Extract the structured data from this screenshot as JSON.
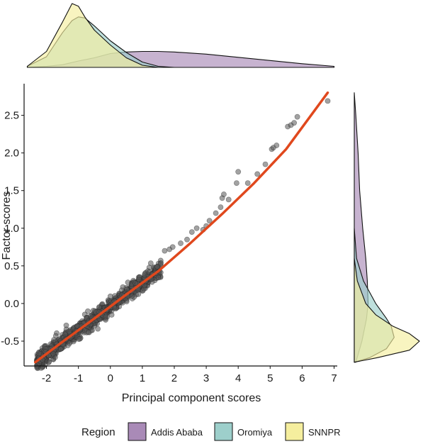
{
  "chart_data": {
    "type": "scatter",
    "xlabel": "Principal component scores",
    "ylabel": "Factor scores",
    "xlim": [
      -2.7,
      7.1
    ],
    "ylim": [
      -0.83,
      2.92
    ],
    "x_ticks": [
      "-2",
      "-1",
      "0",
      "1",
      "2",
      "3",
      "4",
      "5",
      "6",
      "7"
    ],
    "y_ticks": [
      "-0.5",
      "0.0",
      "0.5",
      "1.0",
      "1.5",
      "2.0",
      "2.5"
    ],
    "grid": false,
    "trend_line": {
      "color": "#e0481d",
      "points": [
        [
          -2.35,
          -0.78
        ],
        [
          -1.5,
          -0.51
        ],
        [
          -0.5,
          -0.2
        ],
        [
          0.5,
          0.12
        ],
        [
          1.5,
          0.43
        ],
        [
          2.5,
          0.8
        ],
        [
          3.5,
          1.19
        ],
        [
          4.5,
          1.6
        ],
        [
          5.5,
          2.05
        ],
        [
          6.8,
          2.8
        ]
      ]
    },
    "scatter": {
      "color": "#555555",
      "outliers": [
        [
          1.7,
          0.7
        ],
        [
          1.85,
          0.72
        ],
        [
          1.95,
          0.75
        ],
        [
          2.2,
          0.8
        ],
        [
          2.4,
          0.85
        ],
        [
          2.55,
          0.95
        ],
        [
          2.7,
          1.0
        ],
        [
          2.9,
          0.98
        ],
        [
          3.0,
          1.03
        ],
        [
          3.1,
          1.1
        ],
        [
          3.3,
          1.2
        ],
        [
          3.45,
          1.28
        ],
        [
          3.5,
          1.4
        ],
        [
          3.55,
          1.45
        ],
        [
          3.7,
          1.38
        ],
        [
          3.95,
          1.6
        ],
        [
          4.0,
          1.75
        ],
        [
          4.3,
          1.6
        ],
        [
          4.6,
          1.72
        ],
        [
          4.85,
          1.85
        ],
        [
          5.05,
          2.05
        ],
        [
          5.1,
          2.07
        ],
        [
          5.2,
          2.1
        ],
        [
          5.55,
          2.35
        ],
        [
          5.65,
          2.37
        ],
        [
          5.75,
          2.4
        ],
        [
          5.85,
          2.48
        ],
        [
          6.8,
          2.69
        ]
      ]
    },
    "marginal_top": {
      "series": [
        {
          "name": "Addis Ababa",
          "color": "#a98ab7",
          "x": [
            -2.6,
            -2.0,
            -1.5,
            -1.0,
            -0.5,
            0.0,
            0.5,
            1.0,
            1.5,
            2.0,
            3.0,
            4.0,
            5.0,
            6.0,
            7.0
          ],
          "y": [
            0.0,
            0.02,
            0.05,
            0.12,
            0.18,
            0.26,
            0.29,
            0.3,
            0.3,
            0.29,
            0.25,
            0.19,
            0.13,
            0.07,
            0.02
          ]
        },
        {
          "name": "Oromiya",
          "color": "#9dcfcb",
          "x": [
            -2.6,
            -2.0,
            -1.5,
            -1.2,
            -1.0,
            -0.8,
            -0.5,
            0.0,
            0.5,
            1.0,
            1.5,
            2.0
          ],
          "y": [
            0.02,
            0.2,
            0.65,
            0.88,
            0.95,
            0.93,
            0.78,
            0.5,
            0.28,
            0.1,
            0.02,
            0.0
          ]
        },
        {
          "name": "SNNPR",
          "color": "#f5ee9e",
          "x": [
            -2.6,
            -2.0,
            -1.5,
            -1.2,
            -1.0,
            -0.8,
            -0.5,
            0.0,
            0.5,
            1.0,
            1.5
          ],
          "y": [
            0.02,
            0.3,
            0.85,
            1.2,
            1.15,
            0.95,
            0.7,
            0.42,
            0.18,
            0.04,
            0.0
          ]
        }
      ]
    },
    "marginal_right": {
      "series": [
        {
          "name": "Addis Ababa",
          "color": "#a98ab7",
          "y": [
            -0.78,
            -0.5,
            -0.2,
            0.0,
            0.3,
            0.6,
            1.0,
            1.5,
            2.0,
            2.5,
            2.8
          ],
          "d": [
            0.02,
            0.1,
            0.16,
            0.18,
            0.17,
            0.15,
            0.11,
            0.07,
            0.05,
            0.02,
            0.0
          ]
        },
        {
          "name": "Oromiya",
          "color": "#9dcfcb",
          "y": [
            -0.78,
            -0.72,
            -0.6,
            -0.45,
            -0.3,
            -0.2,
            0.0,
            0.3,
            0.6,
            1.0
          ],
          "d": [
            0.0,
            0.2,
            0.42,
            0.52,
            0.48,
            0.42,
            0.28,
            0.12,
            0.03,
            0.0
          ]
        },
        {
          "name": "SNNPR",
          "color": "#f5ee9e",
          "y": [
            -0.78,
            -0.72,
            -0.62,
            -0.5,
            -0.4,
            -0.3,
            -0.15,
            0.0,
            0.3,
            0.6
          ],
          "d": [
            0.0,
            0.3,
            0.72,
            0.85,
            0.72,
            0.5,
            0.28,
            0.15,
            0.04,
            0.0
          ]
        }
      ]
    },
    "legend": {
      "title": "Region",
      "placement": "bottom",
      "items": [
        {
          "label": "Addis Ababa",
          "color": "#a98ab7"
        },
        {
          "label": "Oromiya",
          "color": "#9dcfcb"
        },
        {
          "label": "SNNPR",
          "color": "#f5ee9e"
        }
      ]
    }
  }
}
